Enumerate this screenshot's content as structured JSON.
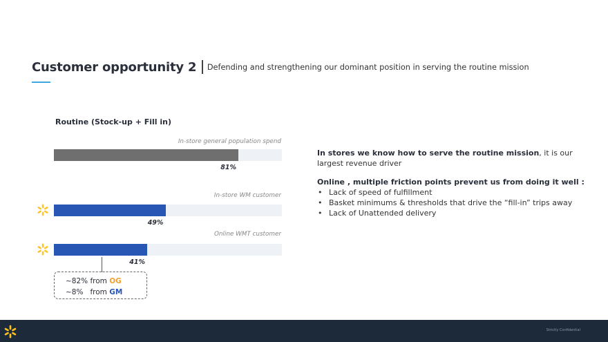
{
  "header": {
    "title": "Customer opportunity 2",
    "subtitle": "Defending and strengthening our dominant position in serving the routine mission"
  },
  "chart_data": {
    "type": "bar",
    "title": "Routine (Stock-up + Fill in)",
    "categories": [
      "In-store general population spend",
      "In-store WM customer",
      "Online WMT customer"
    ],
    "values": [
      81,
      49,
      41
    ],
    "value_labels": [
      "81%",
      "49%",
      "41%"
    ],
    "xlim": [
      0,
      100
    ],
    "colors": [
      "#6f6f6f",
      "#2756b4",
      "#2756b4"
    ],
    "track_color": "#eef1f6",
    "grid": false,
    "legend": "none"
  },
  "callout": {
    "lines": [
      {
        "prefix": "~82% from ",
        "highlight": "OG",
        "color": "#f0a030"
      },
      {
        "prefix": "~8%   from ",
        "highlight": "GM",
        "color": "#2756b4"
      }
    ]
  },
  "panel": {
    "p1_bold": "In stores we know how to serve the routine mission",
    "p1_rest": ", it is our largest revenue driver",
    "p2_bold": "Online , multiple friction points prevent us from doing it well :",
    "bullets": [
      "Lack of speed of fulfillment",
      "Basket minimums & thresholds that drive the “fill-in” trips away",
      "Lack of Unattended delivery"
    ]
  },
  "footer": {
    "confidential": "Strictly Confidential"
  },
  "icons": {
    "spark_bar_2": "spark-icon",
    "spark_bar_3": "spark-icon",
    "spark_color": "#ffc220"
  }
}
